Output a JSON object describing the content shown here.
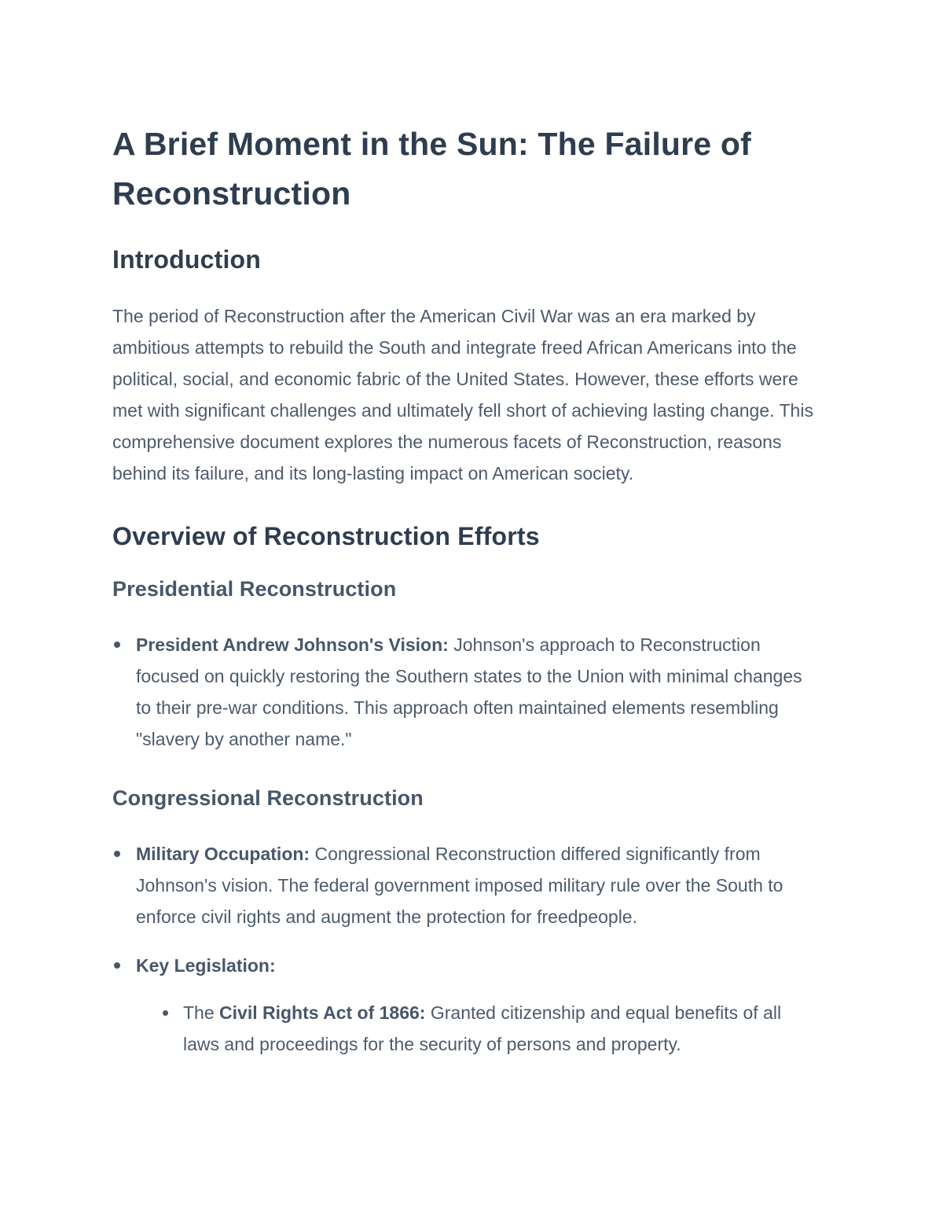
{
  "colors": {
    "background": "#ffffff",
    "heading_text": "#2e3d4f",
    "subheading_text": "#47576a",
    "body_text": "#4c5b6c"
  },
  "doc": {
    "title": "A Brief Moment in the Sun: The Failure of Reconstruction",
    "intro": {
      "heading": "Introduction",
      "body": "The period of Reconstruction after the American Civil War was an era marked by ambitious attempts to rebuild the South and integrate freed African Americans into the political, social, and economic fabric of the United States. However, these efforts were met with significant challenges and ultimately fell short of achieving lasting change. This comprehensive document explores the numerous facets of Reconstruction, reasons behind its failure, and its long-lasting impact on American society."
    },
    "overview": {
      "heading": "Overview of Reconstruction Efforts",
      "presidential": {
        "heading": "Presidential Reconstruction",
        "bullets": [
          {
            "lead": "President Andrew Johnson's Vision:",
            "text": " Johnson's approach to Reconstruction focused on quickly restoring the Southern states to the Union with minimal changes to their pre-war conditions. This approach often maintained elements resembling \"slavery by another name.\""
          }
        ]
      },
      "congressional": {
        "heading": "Congressional Reconstruction",
        "bullets": [
          {
            "lead": "Military Occupation:",
            "text": " Congressional Reconstruction differed significantly from Johnson's vision. The federal government imposed military rule over the South to enforce civil rights and augment the protection for freedpeople."
          },
          {
            "lead": "Key Legislation:",
            "text": ""
          }
        ],
        "sub_bullets": [
          {
            "prefix": "The ",
            "lead": "Civil Rights Act of 1866:",
            "text": " Granted citizenship and equal benefits of all laws and proceedings for the security of persons and property."
          }
        ]
      }
    }
  }
}
